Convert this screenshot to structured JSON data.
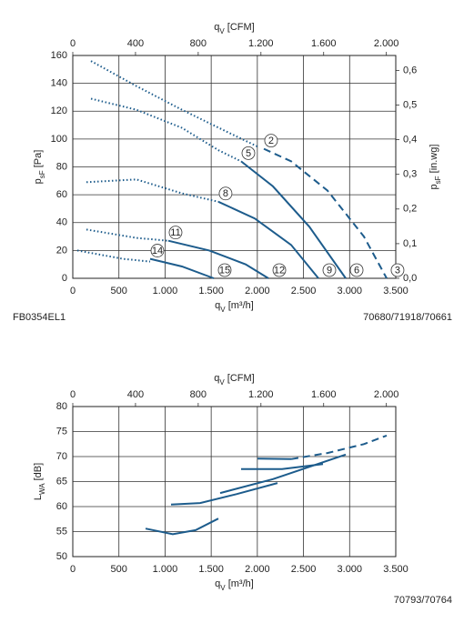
{
  "chart_data": [
    {
      "type": "line",
      "xlabel": {
        "symbol": "q",
        "sub": "V",
        "unit": " [m³/h]"
      },
      "x2label": {
        "symbol": "q",
        "sub": "V",
        "unit": " [CFM]"
      },
      "ylabel": {
        "symbol": "p",
        "sub": "sF",
        "unit": " [Pa]"
      },
      "y2label": {
        "symbol": "p",
        "sub": "sF",
        "unit": " [in.wg]"
      },
      "xlim": [
        0,
        3500
      ],
      "xticks": [
        0,
        500,
        {
          "value": 1000,
          "label": "1.000"
        },
        {
          "value": 1500,
          "label": "1.500"
        },
        {
          "value": 2000,
          "label": "2.000"
        },
        {
          "value": 2500,
          "label": "2.500"
        },
        {
          "value": 3000,
          "label": "3.000"
        },
        {
          "value": 3500,
          "label": "3.500"
        }
      ],
      "x2lim": [
        0,
        2060
      ],
      "x2ticks": [
        0,
        400,
        800,
        {
          "value": 1200,
          "label": "1.200"
        },
        {
          "value": 1600,
          "label": "1.600"
        },
        {
          "value": 2000,
          "label": "2.000"
        }
      ],
      "ylim": [
        0,
        160
      ],
      "yticks": [
        0,
        20,
        40,
        60,
        80,
        100,
        120,
        140,
        160
      ],
      "y2lim": [
        0,
        0.643
      ],
      "y2ticks": [
        {
          "value": 0,
          "label": "0,0"
        },
        {
          "value": 0.1,
          "label": "0,1"
        },
        {
          "value": 0.2,
          "label": "0,2"
        },
        {
          "value": 0.3,
          "label": "0,3"
        },
        {
          "value": 0.4,
          "label": "0,4"
        },
        {
          "value": 0.5,
          "label": "0,5"
        },
        {
          "value": 0.6,
          "label": "0,6"
        }
      ],
      "grid": true,
      "code_left": "FB0354EL1",
      "code_right": "70680/71918/70661",
      "series": [
        {
          "name": "2",
          "end_label": "3",
          "color": "#1d5c8c",
          "segments": [
            {
              "style": "dotted",
              "x": [
                197,
                690,
                1183,
                1676,
                2021
              ],
              "values": [
                156,
                138,
                121,
                105,
                94
              ]
            },
            {
              "style": "dashed",
              "x": [
                2070,
                2366,
                2760,
                3155,
                3401
              ],
              "values": [
                93,
                84,
                63,
                30,
                0
              ]
            }
          ]
        },
        {
          "name": "5",
          "end_label": "6",
          "color": "#1d5c8c",
          "segments": [
            {
              "style": "dotted",
              "x": [
                197,
                690,
                1183,
                1577,
                1824
              ],
              "values": [
                129,
                121,
                108,
                92,
                84
              ]
            },
            {
              "style": "solid",
              "x": [
                1824,
                2169,
                2563,
                2958
              ],
              "values": [
                84,
                66,
                37,
                0
              ]
            }
          ]
        },
        {
          "name": "8",
          "end_label": "9",
          "color": "#1d5c8c",
          "segments": [
            {
              "style": "dotted",
              "x": [
                148,
                690,
                1183,
                1577
              ],
              "values": [
                69,
                71,
                61,
                55
              ]
            },
            {
              "style": "solid",
              "x": [
                1577,
                1972,
                2366,
                2662
              ],
              "values": [
                55,
                43,
                24,
                0
              ]
            }
          ]
        },
        {
          "name": "11",
          "end_label": "12",
          "color": "#1d5c8c",
          "segments": [
            {
              "style": "dotted",
              "x": [
                148,
                690,
                1035
              ],
              "values": [
                35,
                29,
                27
              ]
            },
            {
              "style": "solid",
              "x": [
                1035,
                1479,
                1873,
                2120
              ],
              "values": [
                27,
                20,
                10,
                0
              ]
            }
          ]
        },
        {
          "name": "14",
          "end_label": "15",
          "color": "#1d5c8c",
          "segments": [
            {
              "style": "dotted",
              "x": [
                49,
                543,
                838
              ],
              "values": [
                20,
                14,
                12
              ]
            },
            {
              "style": "solid",
              "x": [
                838,
                1183,
                1528
              ],
              "values": [
                14,
                8.5,
                0
              ]
            }
          ]
        }
      ]
    },
    {
      "type": "line",
      "xlabel": {
        "symbol": "q",
        "sub": "V",
        "unit": " [m³/h]"
      },
      "x2label": {
        "symbol": "q",
        "sub": "V",
        "unit": " [CFM]"
      },
      "ylabel": {
        "symbol": "L",
        "sub": "WA",
        "unit": " [dB]"
      },
      "xlim": [
        0,
        3500
      ],
      "xticks": [
        0,
        500,
        {
          "value": 1000,
          "label": "1.000"
        },
        {
          "value": 1500,
          "label": "1.500"
        },
        {
          "value": 2000,
          "label": "2.000"
        },
        {
          "value": 2500,
          "label": "2.500"
        },
        {
          "value": 3000,
          "label": "3.000"
        },
        {
          "value": 3500,
          "label": "3.500"
        }
      ],
      "x2lim": [
        0,
        2060
      ],
      "x2ticks": [
        0,
        400,
        800,
        {
          "value": 1200,
          "label": "1.200"
        },
        {
          "value": 1600,
          "label": "1.600"
        },
        {
          "value": 2000,
          "label": "2.000"
        }
      ],
      "ylim": [
        50,
        80
      ],
      "yticks": [
        50,
        55,
        60,
        65,
        70,
        75,
        80
      ],
      "grid": true,
      "code_right": "70793/70764",
      "series": [
        {
          "color": "#1d5c8c",
          "segments": [
            {
              "style": "solid",
              "x": [
                2001,
                2366
              ],
              "values": [
                69.6,
                69.5
              ]
            },
            {
              "style": "dashed",
              "x": [
                2366,
                2760,
                3155,
                3401
              ],
              "values": [
                69.5,
                70.7,
                72.5,
                74.2
              ]
            }
          ]
        },
        {
          "color": "#1d5c8c",
          "segments": [
            {
              "style": "solid",
              "x": [
                1824,
                2268,
                2711
              ],
              "values": [
                67.5,
                67.5,
                68.5
              ]
            }
          ]
        },
        {
          "color": "#1d5c8c",
          "segments": [
            {
              "style": "solid",
              "x": [
                1597,
                2169,
                2958
              ],
              "values": [
                62.7,
                65.5,
                70.4
              ]
            }
          ]
        },
        {
          "color": "#1d5c8c",
          "segments": [
            {
              "style": "solid",
              "x": [
                1065,
                1380,
                1774,
                2218
              ],
              "values": [
                60.4,
                60.7,
                62.5,
                64.7
              ]
            }
          ]
        },
        {
          "color": "#1d5c8c",
          "segments": [
            {
              "style": "solid",
              "x": [
                789,
                1084,
                1331,
                1577
              ],
              "values": [
                55.6,
                54.5,
                55.3,
                57.6
              ]
            }
          ]
        }
      ]
    }
  ]
}
